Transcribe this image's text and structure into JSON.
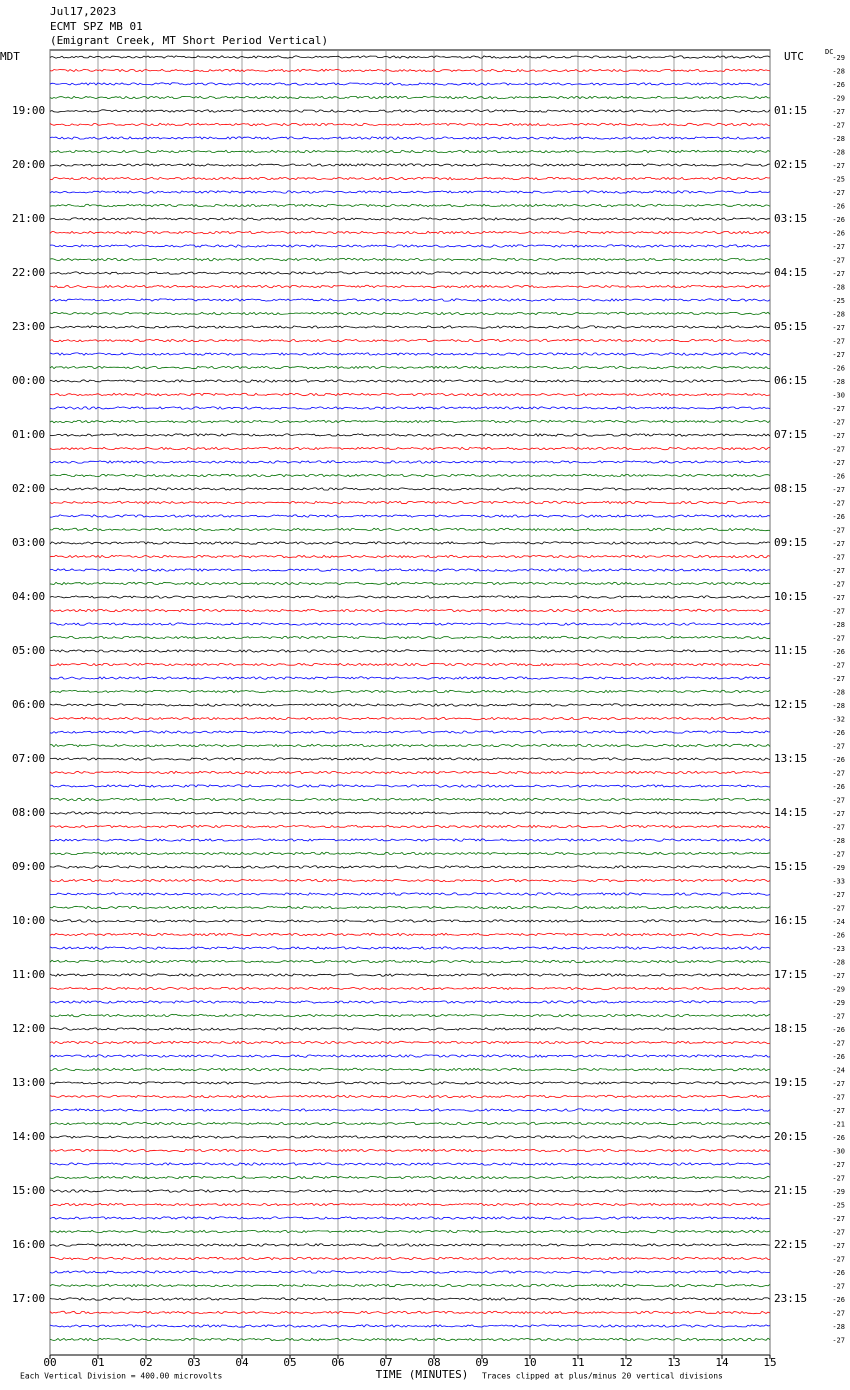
{
  "chart_data": {
    "type": "helicorder",
    "title": "Jul17,2023",
    "subtitle": "ECMT SPZ MB 01",
    "station": "(Emigrant Creek, MT Short Period Vertical)",
    "left_axis_label": "MDT",
    "right_axis_label": "UTC",
    "dc_label": "DC",
    "left_hours": [
      null,
      "19:00",
      "20:00",
      "21:00",
      "22:00",
      "23:00",
      "00:00",
      "01:00",
      "02:00",
      "03:00",
      "04:00",
      "05:00",
      "06:00",
      "07:00",
      "08:00",
      "09:00",
      "10:00",
      "11:00",
      "12:00",
      "13:00",
      "14:00",
      "15:00",
      "16:00",
      "17:00"
    ],
    "right_hours": [
      null,
      "01:15",
      "02:15",
      "03:15",
      "04:15",
      "05:15",
      "06:15",
      "07:15",
      "08:15",
      "09:15",
      "10:15",
      "11:15",
      "12:15",
      "13:15",
      "14:15",
      "15:15",
      "16:15",
      "17:15",
      "18:15",
      "19:15",
      "20:15",
      "21:15",
      "22:15",
      "23:15"
    ],
    "colors": [
      "#000000",
      "#ff0000",
      "#0000ff",
      "#007000"
    ],
    "dc_offsets": [
      -29,
      -28,
      -26,
      -29,
      -27,
      -27,
      -28,
      -28,
      -27,
      -25,
      -27,
      -26,
      -26,
      -26,
      -27,
      -27,
      -27,
      -28,
      -25,
      -28,
      -27,
      -27,
      -27,
      -26,
      -28,
      -30,
      -27,
      -27,
      -27,
      -27,
      -27,
      -26,
      -27,
      -27,
      -26,
      -27,
      -27,
      -27,
      -27,
      -27,
      -27,
      -27,
      -28,
      -27,
      -26,
      -27,
      -27,
      -28,
      -28,
      -32,
      -26,
      -27,
      -26,
      -27,
      -26,
      -27,
      -27,
      -27,
      -28,
      -27,
      -29,
      -33,
      -27,
      -27,
      -24,
      -26,
      -23,
      -28,
      -27,
      -29,
      -29,
      -27,
      -26,
      -27,
      -26,
      -24,
      -27,
      -27,
      -27,
      -21,
      -26,
      -30,
      -27,
      -27,
      -29,
      -25,
      -27,
      -27,
      -27,
      -27,
      -26,
      -27,
      -26,
      -27,
      -28,
      -27
    ],
    "xlabel": "TIME (MINUTES)",
    "xlim": [
      0,
      15
    ],
    "xticks": [
      {
        "value": 0,
        "label": "00"
      },
      {
        "value": 1,
        "label": "01"
      },
      {
        "value": 2,
        "label": "02"
      },
      {
        "value": 3,
        "label": "03"
      },
      {
        "value": 4,
        "label": "04"
      },
      {
        "value": 5,
        "label": "05"
      },
      {
        "value": 6,
        "label": "06"
      },
      {
        "value": 7,
        "label": "07"
      },
      {
        "value": 8,
        "label": "08"
      },
      {
        "value": 9,
        "label": "09"
      },
      10,
      11,
      12,
      13,
      14,
      15
    ],
    "grid": true,
    "footer_left": "Each Vertical Division =  400.00 microvolts",
    "footer_right": "Traces clipped at plus/minus 20 vertical divisions"
  }
}
